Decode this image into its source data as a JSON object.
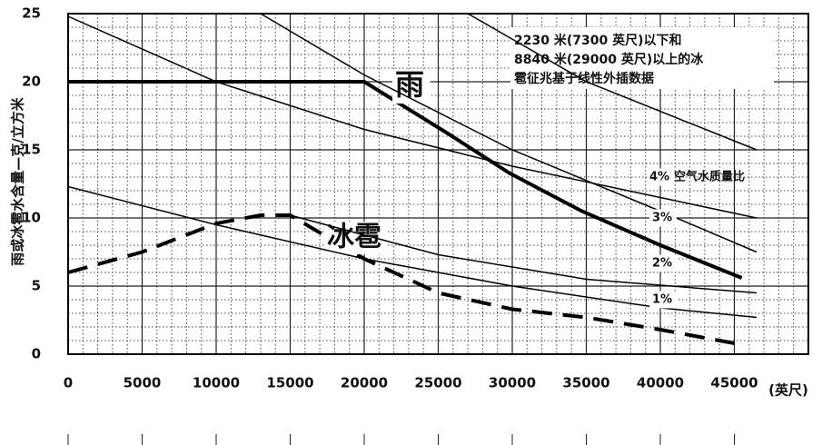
{
  "chart_data": {
    "type": "line",
    "y_label": "雨或冰雹水含量—克/立方米",
    "x_unit": "(英尺)",
    "annotation": [
      "2230 米(7300 英尺)以下和",
      "8840 米(29000 英尺)以上的冰",
      "雹征兆基于线性外插数据"
    ],
    "ratio_label": "空气水质量比",
    "xlim": [
      0,
      50000
    ],
    "ylim": [
      0,
      25
    ],
    "xticks": [
      0,
      5000,
      10000,
      15000,
      20000,
      25000,
      30000,
      35000,
      40000,
      45000
    ],
    "yticks": [
      0,
      5,
      10,
      15,
      20,
      25
    ],
    "grid": true,
    "minor_grid": true,
    "series": [
      {
        "name": "雨",
        "color": "#000000",
        "width": 4,
        "line_style": "solid",
        "x": [
          0,
          20000,
          25500,
          29800,
          34700,
          40000,
          45500
        ],
        "values": [
          20,
          20,
          16.3,
          13.3,
          10.5,
          8,
          5.6
        ]
      },
      {
        "name": "冰雹",
        "color": "#000000",
        "width": 4,
        "line_style": "dashed",
        "x": [
          0,
          5000,
          10000,
          13000,
          15000,
          20000,
          25000,
          30000,
          35000,
          40000,
          45000
        ],
        "values": [
          6,
          7.5,
          9.6,
          10.2,
          10.2,
          7,
          4.5,
          3.3,
          2.7,
          1.8,
          0.8
        ]
      },
      {
        "name": "4%",
        "color": "#000000",
        "width": 1.5,
        "line_style": "solid",
        "x": [
          0,
          10000,
          20000,
          30000,
          40000,
          46500
        ],
        "values": [
          24.8,
          20,
          16.5,
          13.8,
          11.5,
          10
        ]
      },
      {
        "name": "3%",
        "color": "#000000",
        "width": 1.5,
        "line_style": "solid",
        "x": [
          13000,
          20000,
          30000,
          40000,
          46500
        ],
        "values": [
          25,
          20.5,
          15,
          10.5,
          7.5
        ]
      },
      {
        "name": "2%",
        "color": "#000000",
        "width": 1.5,
        "line_style": "solid",
        "x": [
          15000,
          25000,
          35000,
          46500
        ],
        "values": [
          10.2,
          7.3,
          5.5,
          4.5
        ]
      },
      {
        "name": "1%",
        "color": "#000000",
        "width": 1.5,
        "line_style": "solid",
        "x": [
          0,
          10000,
          20000,
          30000,
          40000,
          46500
        ],
        "values": [
          12.3,
          9.5,
          7,
          5,
          3.4,
          2.7
        ]
      },
      {
        "color": "#000000",
        "width": 1.5,
        "line_style": "solid",
        "x": [
          27000,
          35000,
          46500
        ],
        "values": [
          25,
          20,
          15
        ]
      }
    ]
  }
}
